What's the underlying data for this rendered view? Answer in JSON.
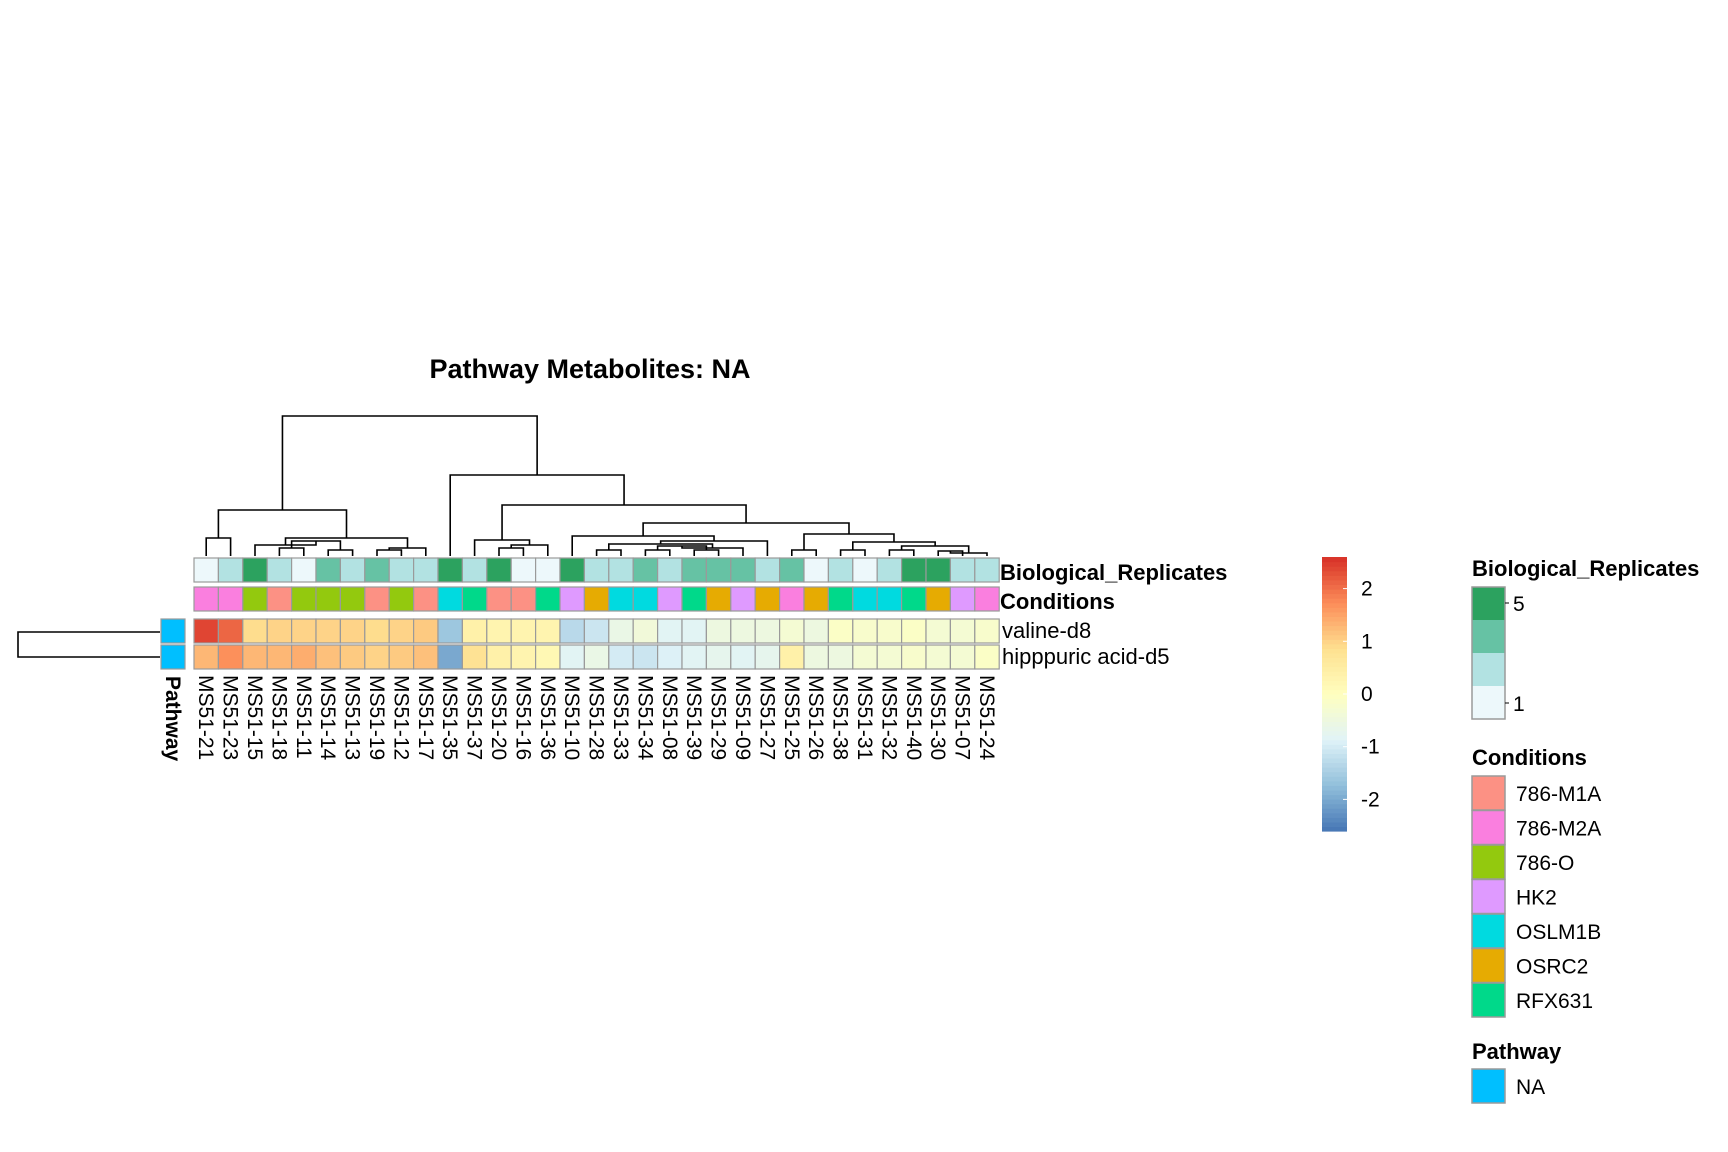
{
  "chart_data": {
    "type": "heatmap",
    "title": "Pathway  Metabolites:  NA",
    "columns": [
      "MS51-21",
      "MS51-23",
      "MS51-15",
      "MS51-18",
      "MS51-11",
      "MS51-14",
      "MS51-13",
      "MS51-19",
      "MS51-12",
      "MS51-17",
      "MS51-35",
      "MS51-37",
      "MS51-20",
      "MS51-16",
      "MS51-36",
      "MS51-10",
      "MS51-28",
      "MS51-33",
      "MS51-34",
      "MS51-08",
      "MS51-39",
      "MS51-29",
      "MS51-09",
      "MS51-27",
      "MS51-25",
      "MS51-26",
      "MS51-38",
      "MS51-31",
      "MS51-32",
      "MS51-40",
      "MS51-30",
      "MS51-07",
      "MS51-24"
    ],
    "rows": [
      "valine-d8",
      "hipppuric acid-d5"
    ],
    "values": [
      [
        2.4,
        2.1,
        0.9,
        1.0,
        1.0,
        1.0,
        1.0,
        0.9,
        1.0,
        1.1,
        -1.6,
        0.4,
        0.3,
        0.3,
        0.3,
        -1.3,
        -1.1,
        -0.6,
        -0.4,
        -0.8,
        -0.8,
        -0.5,
        -0.5,
        -0.5,
        -0.3,
        -0.5,
        -0.1,
        -0.2,
        -0.2,
        -0.1,
        -0.3,
        -0.3,
        -0.2
      ],
      [
        1.3,
        1.7,
        1.3,
        1.3,
        1.4,
        1.2,
        1.1,
        1.0,
        1.1,
        1.2,
        -2.0,
        0.8,
        0.4,
        0.3,
        0.2,
        -0.8,
        -0.6,
        -1.0,
        -1.1,
        -0.9,
        -0.8,
        -0.7,
        -0.8,
        -0.7,
        0.4,
        -0.5,
        -0.5,
        -0.3,
        -0.3,
        -0.2,
        -0.3,
        -0.3,
        -0.1
      ]
    ],
    "annotations": {
      "biological_replicates": [
        1,
        2,
        5,
        3,
        1,
        4,
        3,
        4,
        2,
        2,
        5,
        2,
        5,
        1,
        1,
        5,
        3,
        3,
        4,
        3,
        4,
        4,
        4,
        2,
        4,
        1,
        3,
        1,
        2,
        5,
        5,
        2,
        3
      ],
      "conditions": [
        "786-M2A",
        "786-M2A",
        "786-O",
        "786-M1A",
        "786-O",
        "786-O",
        "786-O",
        "786-M1A",
        "786-O",
        "786-M1A",
        "OSLM1B",
        "RFX631",
        "786-M1A",
        "786-M1A",
        "RFX631",
        "HK2",
        "OSRC2",
        "OSLM1B",
        "OSLM1B",
        "HK2",
        "RFX631",
        "OSRC2",
        "HK2",
        "OSRC2",
        "786-M2A",
        "OSRC2",
        "RFX631",
        "OSLM1B",
        "OSLM1B",
        "RFX631",
        "OSRC2",
        "HK2",
        "786-M2A"
      ],
      "pathway": [
        "NA",
        "NA"
      ]
    },
    "track_labels": [
      "Biological_Replicates",
      "Conditions"
    ],
    "pathway_label": "Pathway",
    "color_scale": {
      "ticks": [
        2,
        1,
        0,
        -1,
        -2
      ],
      "range": [
        -2.6,
        2.6
      ],
      "colors": [
        "#4575b4",
        "#91bfdb",
        "#e0f3f8",
        "#ffffbf",
        "#fee090",
        "#fc8d59",
        "#d73027"
      ]
    },
    "legends": {
      "biological_replicates": {
        "title": "Biological_Replicates",
        "colors": [
          "#2ca25f",
          "#66c2a4",
          "#b2e2e2",
          "#edf8fb"
        ],
        "min_label": "1",
        "max_label": "5"
      },
      "conditions": {
        "title": "Conditions",
        "items": [
          {
            "label": "786-M1A",
            "color": "#fc9184"
          },
          {
            "label": "786-M2A",
            "color": "#fa7fdf"
          },
          {
            "label": "786-O",
            "color": "#93c90e"
          },
          {
            "label": "HK2",
            "color": "#df9aff"
          },
          {
            "label": "OSLM1B",
            "color": "#00dae0"
          },
          {
            "label": "OSRC2",
            "color": "#e6ab02"
          },
          {
            "label": "RFX631",
            "color": "#00d98a"
          }
        ]
      },
      "pathway": {
        "title": "Pathway",
        "items": [
          {
            "label": "NA",
            "color": "#00bfff"
          }
        ]
      }
    }
  }
}
